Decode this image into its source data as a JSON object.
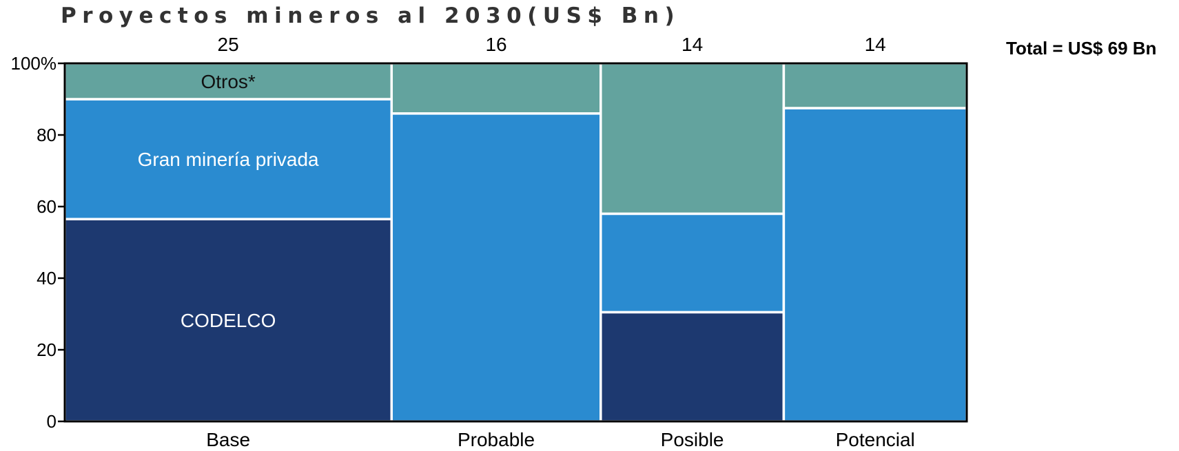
{
  "chart_data": {
    "type": "bar",
    "title": "Proyectos mineros al 2030(US$ Bn)",
    "total_label": "Total = US$ 69 Bn",
    "categories": [
      "Base",
      "Probable",
      "Posible",
      "Potencial"
    ],
    "column_totals": [
      25,
      16,
      14,
      14
    ],
    "column_total_labels": [
      "25",
      "16",
      "14",
      "14"
    ],
    "series": [
      {
        "name": "CODELCO",
        "values": [
          56.5,
          0,
          30.5,
          0
        ]
      },
      {
        "name": "Gran minería privada",
        "values": [
          33.5,
          86,
          27.5,
          87.5
        ]
      },
      {
        "name": "Otros*",
        "values": [
          10,
          14,
          42,
          12.5
        ]
      }
    ],
    "ylim": [
      0,
      100
    ],
    "yticks": [
      0,
      20,
      40,
      60,
      80,
      100
    ],
    "ytick_labels": [
      "0",
      "20",
      "40",
      "60",
      "80",
      "100%"
    ],
    "segment_labels_shown_in": "Base",
    "colors": {
      "CODELCO": "#1d3970",
      "Gran minería privada": "#2a8bd0",
      "Otros*": "#63a39e"
    },
    "segment_label_colors": {
      "CODELCO": "#ffffff",
      "Gran minería privada": "#ffffff",
      "Otros*": "#111111"
    }
  }
}
